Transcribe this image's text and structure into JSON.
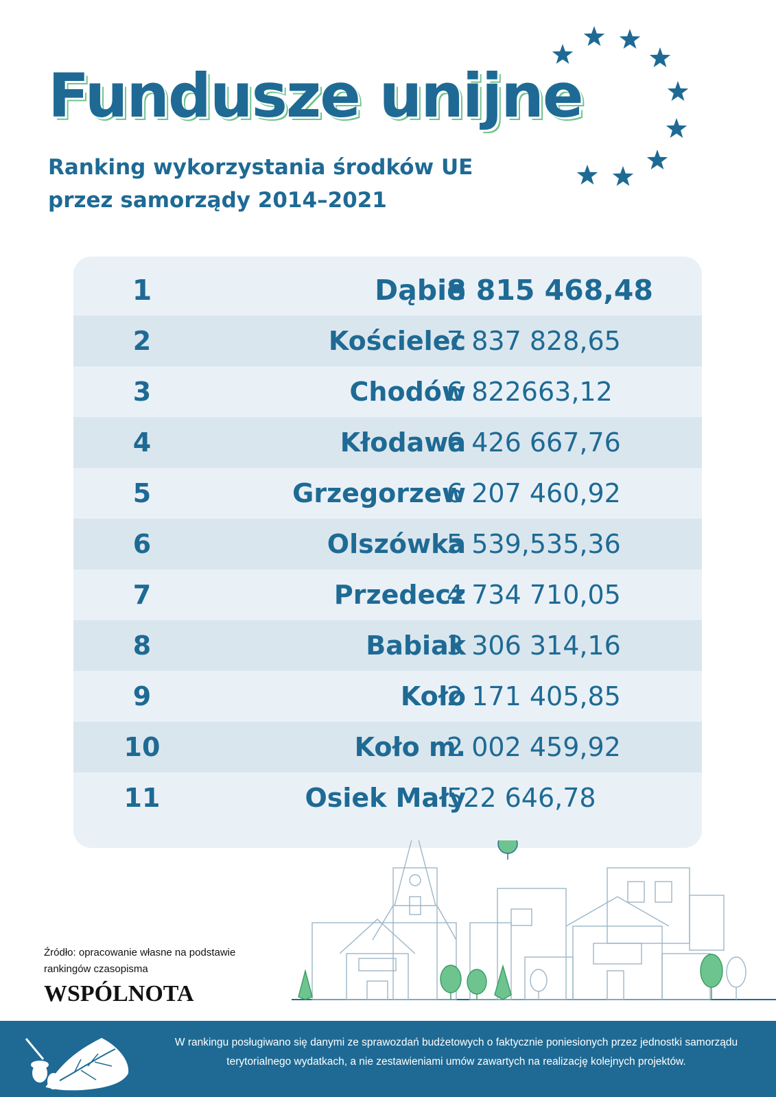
{
  "header": {
    "title": "Fundusze unijne",
    "subtitle_line1": "Ranking wykorzystania środków UE",
    "subtitle_line2": "przez samorządy 2014–2021"
  },
  "chart_data": {
    "type": "table",
    "columns": [
      "",
      "",
      ""
    ],
    "rows": [
      {
        "rank": "1",
        "name": "Dąbie",
        "amount": "8 815 468,48"
      },
      {
        "rank": "2",
        "name": "Kościelec",
        "amount": "7 837 828,65"
      },
      {
        "rank": "3",
        "name": "Chodów",
        "amount": "6 822663,12"
      },
      {
        "rank": "4",
        "name": "Kłodawa",
        "amount": "6 426 667,76"
      },
      {
        "rank": "5",
        "name": "Grzegorzew",
        "amount": "6 207 460,92"
      },
      {
        "rank": "6",
        "name": "Olszówka",
        "amount": "5 539,535,36"
      },
      {
        "rank": "7",
        "name": "Przedecz",
        "amount": "4 734 710,05"
      },
      {
        "rank": "8",
        "name": "Babiak",
        "amount": "3 306 314,16"
      },
      {
        "rank": "9",
        "name": "Koło",
        "amount": "2 171 405,85"
      },
      {
        "rank": "10",
        "name": "Koło m.",
        "amount": "2 002 459,92"
      },
      {
        "rank": "11",
        "name": "Osiek Mały",
        "amount": "522 646,78"
      }
    ]
  },
  "source": {
    "text": "Źródło: opracowanie własne na podstawie rankingów czasopisma",
    "publication_logo": "WSPÓLNOTA"
  },
  "footer": {
    "note": "W rankingu posługiwano się danymi ze sprawozdań budżetowych o faktycznie poniesionych przez jednostki samorządu terytorialnego wydatkach, a nie zestawieniami umów zawartych na realizację kolejnych projektów."
  },
  "colors": {
    "primary_blue": "#1e6a94",
    "accent_green": "#6ec48e",
    "table_light": "#e9f1f7",
    "table_stripe": "#dae6ee"
  },
  "icons": [
    "eu-stars-icon",
    "town-illustration",
    "oak-leaf-acorn-icon"
  ]
}
